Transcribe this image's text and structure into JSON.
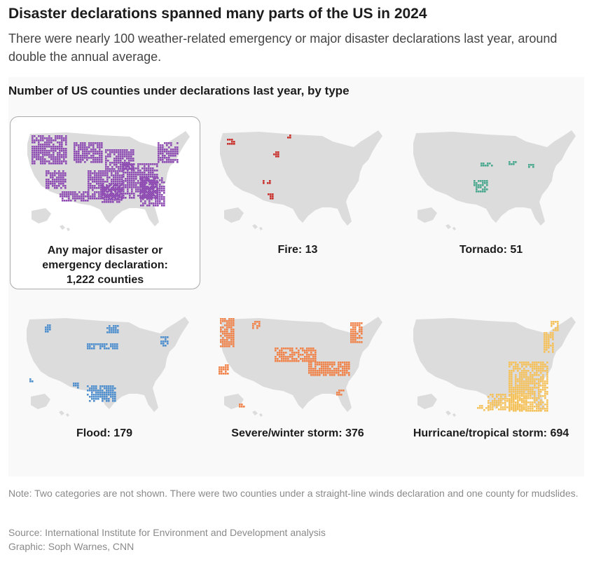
{
  "header": {
    "title": "Disaster declarations spanned many parts of the US in 2024",
    "subtitle": "There were nearly 100 weather-related emergency or major disaster declarations last year, around double the annual average."
  },
  "section_title": "Number of US counties under declarations last year, by type",
  "maps": [
    {
      "id": "any",
      "label_line1": "Any major disaster or",
      "label_line2": "emergency declaration:",
      "label_line3": "1,222 counties",
      "color": "#8e4cb3",
      "selected": true
    },
    {
      "id": "fire",
      "label": "Fire: 13",
      "color": "#c9302c",
      "selected": false
    },
    {
      "id": "tornado",
      "label": "Tornado: 51",
      "color": "#4aa88f",
      "selected": false
    },
    {
      "id": "flood",
      "label": "Flood: 179",
      "color": "#4f8fce",
      "selected": false
    },
    {
      "id": "storm",
      "label": "Severe/winter storm: 376",
      "color": "#f0834a",
      "selected": false
    },
    {
      "id": "hurricane",
      "label": "Hurricane/tropical storm: 694",
      "color": "#f5c15a",
      "selected": false
    }
  ],
  "base_map_color": "#dcdcdc",
  "footer": {
    "note": "Note: Two categories are not shown. There were two counties under a straight-line winds declaration and one county for mudslides.",
    "source": "Source: International Institute for Environment and Development analysis",
    "credit": "Graphic: Soph Warnes, CNN"
  }
}
